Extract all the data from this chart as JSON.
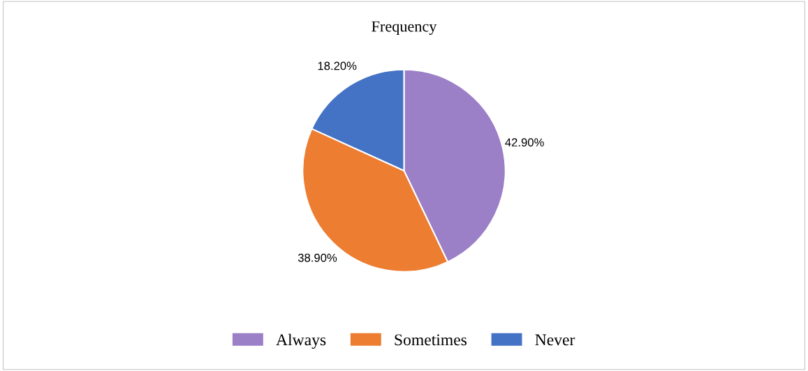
{
  "chart_data": {
    "type": "pie",
    "title": "Frequency",
    "categories": [
      "Always",
      "Sometimes",
      "Never"
    ],
    "values": [
      42.9,
      38.9,
      18.2
    ],
    "value_labels": [
      "42.90%",
      "38.90%",
      "18.20%"
    ],
    "colors": [
      "#9b7fc7",
      "#ed7d31",
      "#4472c4"
    ],
    "legend": "bottom"
  }
}
